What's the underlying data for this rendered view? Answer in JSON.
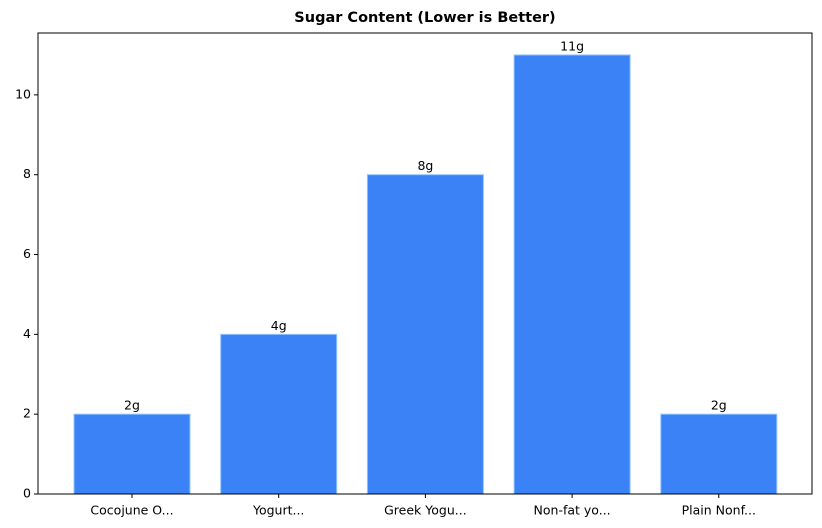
{
  "chart_data": {
    "type": "bar",
    "title": "Sugar Content (Lower is Better)",
    "categories": [
      "Cocojune O...",
      "Yogurt...",
      "Greek Yogu...",
      "Non-fat yo...",
      "Plain Nonf..."
    ],
    "values": [
      2,
      4,
      8,
      11,
      2
    ],
    "value_labels": [
      "2g",
      "4g",
      "8g",
      "11g",
      "2g"
    ],
    "color": "#3b82f6",
    "ylim": [
      0,
      11.55
    ],
    "yticks": [
      0,
      2,
      4,
      6,
      8,
      10
    ],
    "grid": false
  }
}
